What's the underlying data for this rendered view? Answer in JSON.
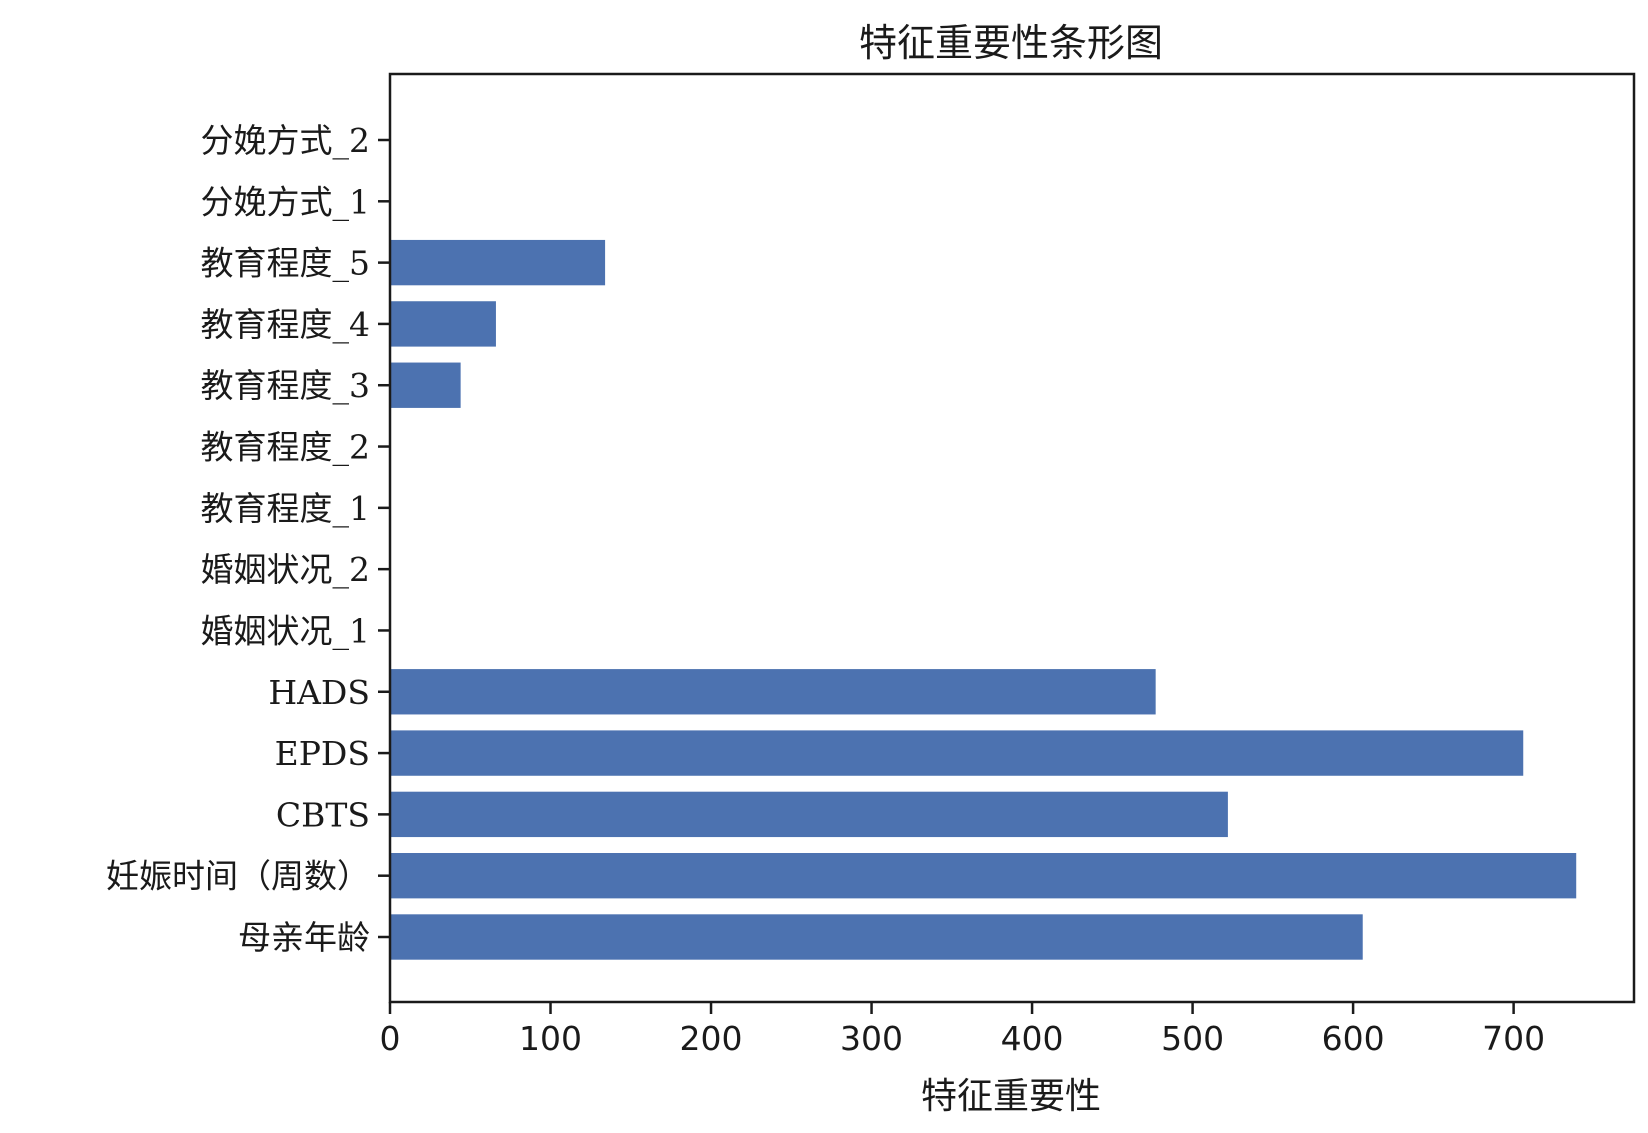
{
  "chart_data": {
    "type": "bar",
    "orientation": "horizontal",
    "title": "特征重要性条形图",
    "xlabel": "特征重要性",
    "ylabel": "",
    "xlim": [
      0,
      775
    ],
    "xticks": [
      0,
      100,
      200,
      300,
      400,
      500,
      600,
      700
    ],
    "grid": false,
    "bar_color": "#4c72b0",
    "categories": [
      "母亲年龄",
      "妊娠时间（周数）",
      "CBTS",
      "EPDS",
      "HADS",
      "婚姻状况_1",
      "婚姻状况_2",
      "教育程度_1",
      "教育程度_2",
      "教育程度_3",
      "教育程度_4",
      "教育程度_5",
      "分娩方式_1",
      "分娩方式_2"
    ],
    "values": [
      606,
      739,
      522,
      706,
      477,
      0,
      0,
      0,
      0,
      44,
      66,
      134,
      0,
      0
    ]
  }
}
